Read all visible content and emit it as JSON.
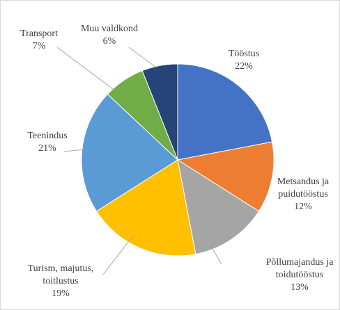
{
  "chart_data": {
    "type": "pie",
    "categories": [
      "Tööstus",
      "Metsandus ja puidutööstus",
      "Põllumajandus ja toidutööstus",
      "Turism, majutus, toitlustus",
      "Teenindus",
      "Transport",
      "Muu valdkond"
    ],
    "values": [
      22,
      12,
      13,
      19,
      21,
      7,
      6
    ],
    "value_labels": [
      "22%",
      "12%",
      "13%",
      "19%",
      "21%",
      "7%",
      "6%"
    ],
    "colors": [
      "#4472c4",
      "#ed7d31",
      "#a5a5a5",
      "#ffc000",
      "#5b9bd5",
      "#70ad47",
      "#264478"
    ]
  }
}
